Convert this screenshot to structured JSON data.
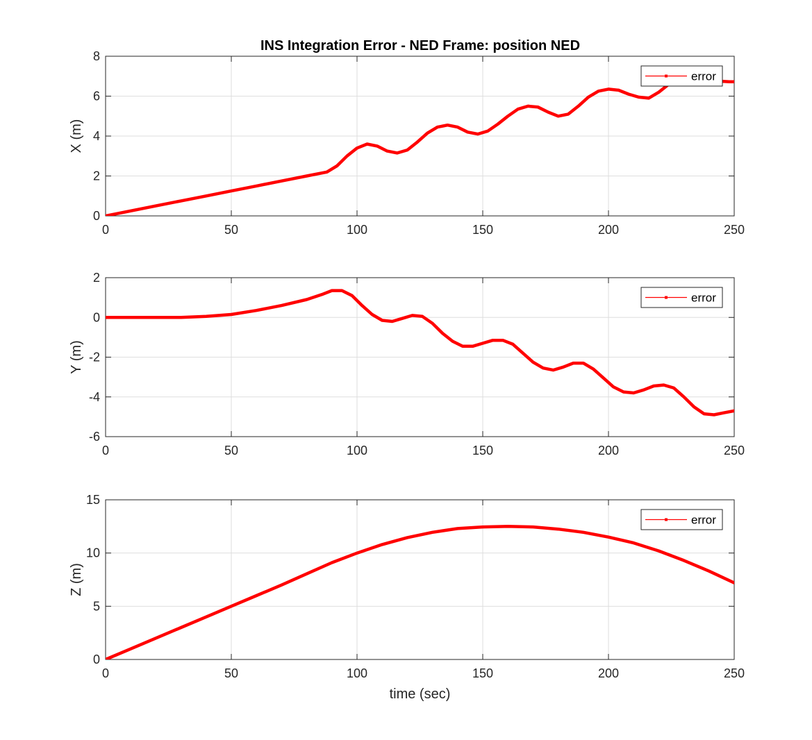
{
  "figure": {
    "title": "INS Integration Error - NED Frame: position NED",
    "xlabel": "time (sec)",
    "line_color": "#ff0000"
  },
  "chart_data": [
    {
      "type": "line",
      "title": "INS Integration Error - NED Frame: position NED",
      "xlabel": "",
      "ylabel": "X (m)",
      "xlim": [
        0,
        250
      ],
      "ylim": [
        0,
        8
      ],
      "xticks": [
        0,
        50,
        100,
        150,
        200,
        250
      ],
      "yticks": [
        0,
        2,
        4,
        6,
        8
      ],
      "grid": true,
      "legend": "top-right",
      "series": [
        {
          "name": "error",
          "color": "#ff0000",
          "x": [
            0,
            10,
            20,
            30,
            40,
            50,
            60,
            70,
            80,
            88,
            92,
            96,
            100,
            104,
            108,
            112,
            116,
            120,
            124,
            128,
            132,
            136,
            140,
            144,
            148,
            152,
            156,
            160,
            164,
            168,
            172,
            176,
            180,
            184,
            188,
            192,
            196,
            200,
            204,
            208,
            212,
            216,
            220,
            224,
            228,
            232,
            236,
            240,
            244,
            248,
            250
          ],
          "y": [
            0.0,
            0.25,
            0.5,
            0.75,
            1.0,
            1.25,
            1.5,
            1.75,
            2.0,
            2.2,
            2.5,
            3.0,
            3.4,
            3.6,
            3.5,
            3.25,
            3.15,
            3.3,
            3.7,
            4.15,
            4.45,
            4.55,
            4.45,
            4.2,
            4.1,
            4.25,
            4.6,
            5.0,
            5.35,
            5.5,
            5.45,
            5.2,
            5.0,
            5.1,
            5.5,
            5.95,
            6.25,
            6.35,
            6.3,
            6.1,
            5.95,
            5.9,
            6.2,
            6.6,
            6.85,
            6.95,
            6.9,
            6.82,
            6.75,
            6.72,
            6.72
          ]
        }
      ]
    },
    {
      "type": "line",
      "xlabel": "",
      "ylabel": "Y (m)",
      "xlim": [
        0,
        250
      ],
      "ylim": [
        -6,
        2
      ],
      "xticks": [
        0,
        50,
        100,
        150,
        200,
        250
      ],
      "yticks": [
        -6,
        -4,
        -2,
        0,
        2
      ],
      "grid": true,
      "legend": "top-right",
      "series": [
        {
          "name": "error",
          "color": "#ff0000",
          "x": [
            0,
            10,
            20,
            30,
            40,
            50,
            60,
            70,
            80,
            86,
            90,
            94,
            98,
            102,
            106,
            110,
            114,
            118,
            122,
            126,
            130,
            134,
            138,
            142,
            146,
            150,
            154,
            158,
            162,
            166,
            170,
            174,
            178,
            182,
            186,
            190,
            194,
            198,
            202,
            206,
            210,
            214,
            218,
            222,
            226,
            230,
            234,
            238,
            242,
            246,
            250
          ],
          "y": [
            0.0,
            0.0,
            0.0,
            0.0,
            0.05,
            0.15,
            0.35,
            0.6,
            0.9,
            1.15,
            1.35,
            1.35,
            1.1,
            0.6,
            0.15,
            -0.15,
            -0.2,
            -0.05,
            0.1,
            0.05,
            -0.3,
            -0.8,
            -1.2,
            -1.45,
            -1.45,
            -1.3,
            -1.15,
            -1.15,
            -1.35,
            -1.8,
            -2.25,
            -2.55,
            -2.65,
            -2.5,
            -2.3,
            -2.3,
            -2.6,
            -3.05,
            -3.5,
            -3.75,
            -3.8,
            -3.65,
            -3.45,
            -3.4,
            -3.55,
            -4.0,
            -4.5,
            -4.85,
            -4.9,
            -4.8,
            -4.7
          ]
        }
      ]
    },
    {
      "type": "line",
      "xlabel": "time (sec)",
      "ylabel": "Z (m)",
      "xlim": [
        0,
        250
      ],
      "ylim": [
        0,
        15
      ],
      "xticks": [
        0,
        50,
        100,
        150,
        200,
        250
      ],
      "yticks": [
        0,
        5,
        10,
        15
      ],
      "grid": true,
      "legend": "top-right",
      "series": [
        {
          "name": "error",
          "color": "#ff0000",
          "x": [
            0,
            10,
            20,
            30,
            40,
            50,
            60,
            70,
            80,
            90,
            100,
            110,
            120,
            130,
            140,
            150,
            160,
            170,
            180,
            190,
            200,
            210,
            220,
            230,
            240,
            250
          ],
          "y": [
            0.0,
            1.0,
            2.0,
            3.0,
            4.0,
            5.0,
            6.0,
            7.0,
            8.05,
            9.1,
            10.0,
            10.8,
            11.45,
            11.95,
            12.3,
            12.45,
            12.5,
            12.45,
            12.25,
            11.95,
            11.5,
            10.95,
            10.2,
            9.3,
            8.3,
            7.2
          ]
        }
      ]
    }
  ]
}
